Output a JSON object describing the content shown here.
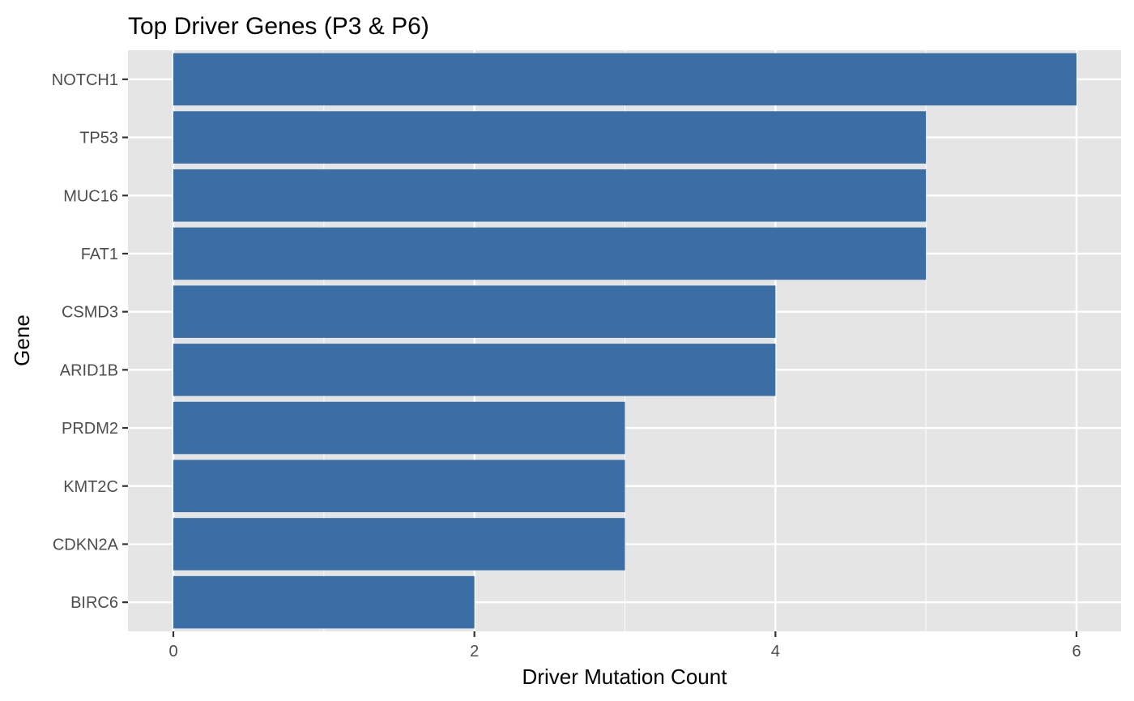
{
  "chart_data": {
    "type": "bar",
    "orientation": "horizontal",
    "title": "Top Driver Genes (P3 & P6)",
    "xlabel": "Driver Mutation Count",
    "ylabel": "Gene",
    "categories": [
      "NOTCH1",
      "TP53",
      "MUC16",
      "FAT1",
      "CSMD3",
      "ARID1B",
      "PRDM2",
      "KMT2C",
      "CDKN2A",
      "BIRC6"
    ],
    "values": [
      6,
      5,
      5,
      5,
      4,
      4,
      3,
      3,
      3,
      2
    ],
    "xlim": [
      0,
      6
    ],
    "x_ticks": [
      0,
      2,
      4,
      6
    ],
    "x_tick_labels": [
      "0",
      "2",
      "4",
      "6"
    ],
    "grid": true,
    "colors": {
      "bar": "#3a6ea5",
      "panel_background": "#e5e5e5",
      "grid": "#ffffff",
      "tick_text": "#4d4d4d",
      "label_text": "#000000"
    }
  }
}
